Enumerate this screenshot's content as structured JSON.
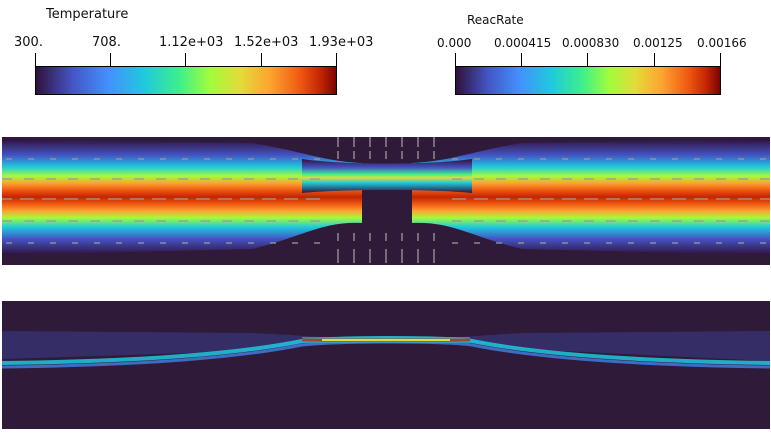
{
  "temperature_legend": {
    "title": "Temperature",
    "ticks": [
      "300.",
      "708.",
      "1.12e+03",
      "1.52e+03",
      "1.93e+03"
    ]
  },
  "reacrate_legend": {
    "title": "ReacRate",
    "ticks": [
      "0.000",
      "0.000415",
      "0.000830",
      "0.00125",
      "0.00166"
    ]
  },
  "colormap": [
    "#30123b",
    "#4454c4",
    "#4490fe",
    "#1fc9dd",
    "#3ef08a",
    "#a2fc3c",
    "#e2dc38",
    "#fea331",
    "#ef5911",
    "#c22402",
    "#7a0403"
  ],
  "colors": {
    "background": "#ffffff",
    "field_background": "#2f1a3a",
    "vectors": "#9a9a9a"
  }
}
